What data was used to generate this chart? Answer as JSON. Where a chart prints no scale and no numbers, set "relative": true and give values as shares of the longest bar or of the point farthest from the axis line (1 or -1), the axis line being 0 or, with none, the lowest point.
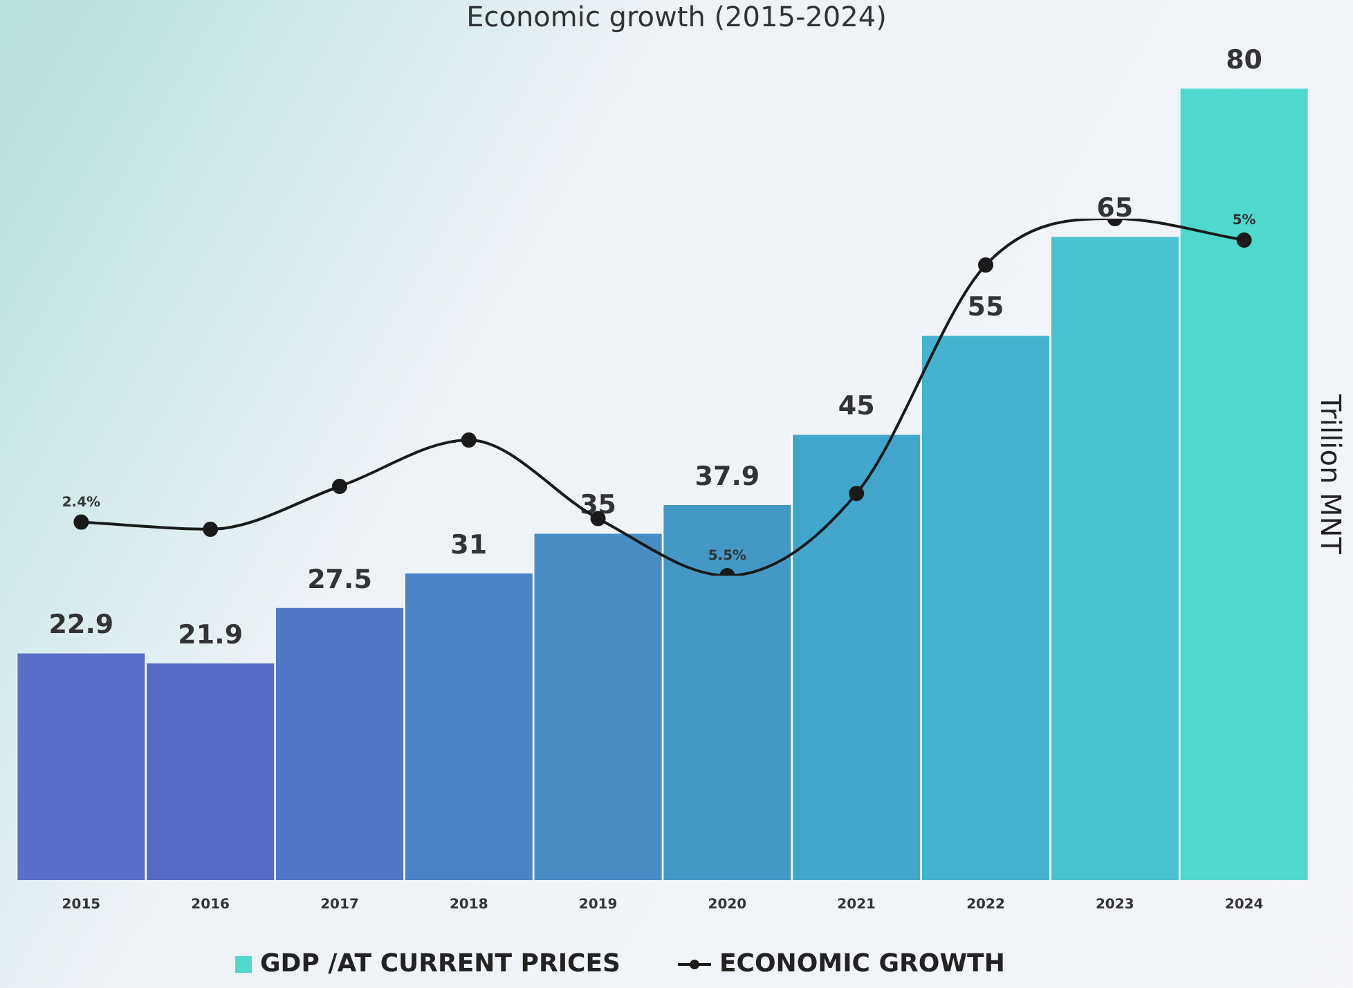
{
  "chart_data": [
    {
      "type": "bar",
      "title": "Economic growth (2015-2024)",
      "categories": [
        "2015",
        "2016",
        "2017",
        "2018",
        "2019",
        "2020",
        "2021",
        "2022",
        "2023",
        "2024"
      ],
      "series": [
        {
          "name": "GDP /AT CURRENT PRICES",
          "values": [
            22.9,
            21.9,
            27.5,
            31,
            35,
            37.9,
            45,
            55,
            65,
            80
          ],
          "colors": [
            "#5a6fc8",
            "#536bc4",
            "#5077c8",
            "#4c82c6",
            "#488cc4",
            "#4498c6",
            "#42a6cc",
            "#43b4d0",
            "#48c2cf",
            "#4fd8cc"
          ]
        }
      ],
      "data_labels": true,
      "tick_labels": "x",
      "legend": "bottom",
      "annotations": [
        "Trillion MNT"
      ]
    },
    {
      "type": "line",
      "relative": true,
      "tick_labels": false,
      "legend": "bottom",
      "marker": "circle",
      "categories": [
        "2015",
        "2016",
        "2017",
        "2018",
        "2019",
        "2020",
        "2021",
        "2022",
        "2023",
        "2024"
      ],
      "series": [
        {
          "name": "ECONOMIC GROWTH",
          "color": "#1a1a1a",
          "values": [
            0.15,
            0.13,
            0.25,
            0.38,
            0.16,
            0,
            0.23,
            0.87,
            1,
            0.94
          ]
        }
      ],
      "annotations": [
        {
          "text": "2.4%",
          "x": "2015",
          "y": 0.15
        },
        {
          "text": "5.5%",
          "x": "2020",
          "y": 0
        },
        {
          "text": "5%",
          "x": "2024",
          "y": 0.94
        }
      ]
    }
  ]
}
